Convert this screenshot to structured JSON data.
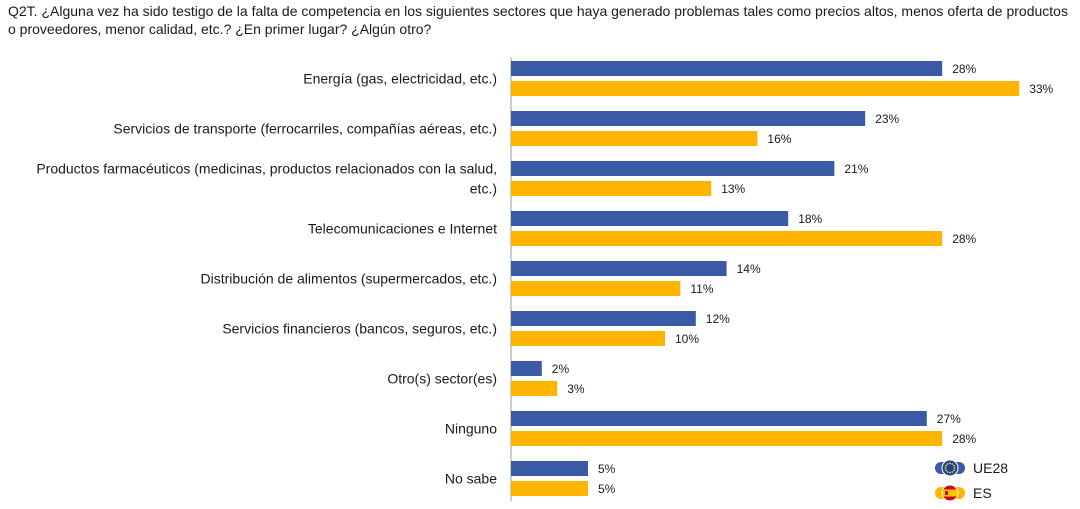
{
  "title": "Q2T. ¿Alguna vez ha sido testigo de la falta de competencia en los siguientes sectores que haya generado problemas tales como precios altos, menos oferta de productos o proveedores, menor calidad, etc.? ¿En primer lugar? ¿Algún otro?",
  "chart_data": {
    "type": "bar",
    "orientation": "horizontal",
    "categories": [
      [
        "Energía (gas, electricidad, etc.)"
      ],
      [
        "Servicios de transporte (ferrocarriles, compañías aéreas, etc.)"
      ],
      [
        "Productos farmacéuticos (medicinas, productos relacionados con la salud,",
        "etc.)"
      ],
      [
        "Telecomunicaciones e Internet"
      ],
      [
        "Distribución de alimentos (supermercados, etc.)"
      ],
      [
        "Servicios financieros (bancos, seguros, etc.)"
      ],
      [
        "Otro(s) sector(es)"
      ],
      [
        "Ninguno"
      ],
      [
        "No sabe"
      ]
    ],
    "series": [
      {
        "name": "UE28",
        "color": "#3a5aa6",
        "flag": "eu-flag-icon",
        "values": [
          28,
          23,
          21,
          18,
          14,
          12,
          2,
          27,
          5
        ]
      },
      {
        "name": "ES",
        "color": "#ffb400",
        "flag": "es-flag-icon",
        "values": [
          33,
          16,
          13,
          28,
          11,
          10,
          3,
          28,
          5
        ]
      }
    ],
    "value_suffix": "%",
    "xlim": [
      0,
      33
    ],
    "grid": false,
    "legend_position": "bottom-right"
  }
}
